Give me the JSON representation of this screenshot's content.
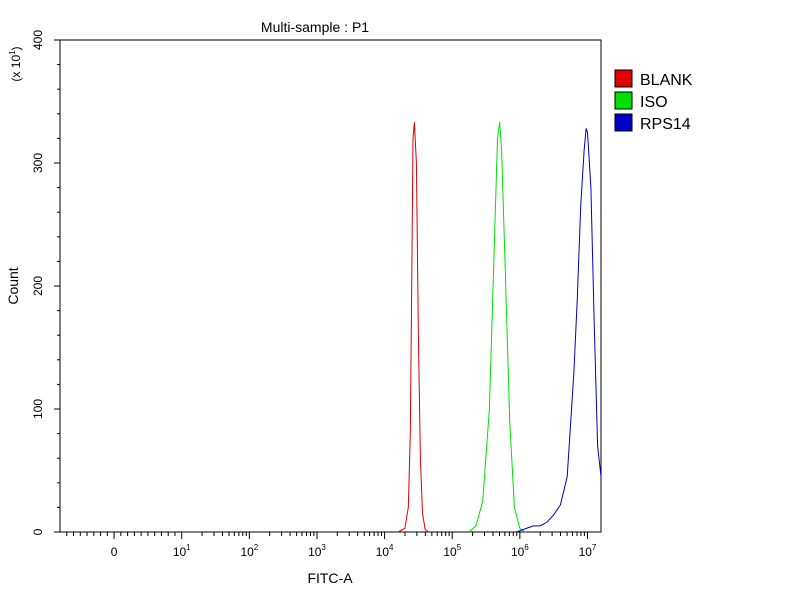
{
  "chart_data": {
    "type": "line",
    "title": "Multi-sample : P1",
    "xlabel": "FITC-A",
    "ylabel": "Count",
    "y_multiplier": {
      "base": "(x 10",
      "exp": "1",
      "close": ")"
    },
    "xscale": "log",
    "xlim": [
      -0.8,
      7.2
    ],
    "ylim": [
      0,
      400
    ],
    "y_ticks": [
      {
        "value": 0,
        "label": "0"
      },
      {
        "value": 100,
        "label": "100"
      },
      {
        "value": 200,
        "label": "200"
      },
      {
        "value": 300,
        "label": "300"
      },
      {
        "value": 400,
        "label": "400"
      }
    ],
    "x_ticks": [
      {
        "value": 0,
        "base": "0",
        "exp": ""
      },
      {
        "value": 1,
        "base": "10",
        "exp": "1"
      },
      {
        "value": 2,
        "base": "10",
        "exp": "2"
      },
      {
        "value": 3,
        "base": "10",
        "exp": "3"
      },
      {
        "value": 4,
        "base": "10",
        "exp": "4"
      },
      {
        "value": 5,
        "base": "10",
        "exp": "5"
      },
      {
        "value": 6,
        "base": "10",
        "exp": "6"
      },
      {
        "value": 7,
        "base": "10",
        "exp": "7"
      }
    ],
    "legend_position": "right",
    "series": [
      {
        "name": "BLANK",
        "color": "#e00000",
        "points": [
          [
            4.2,
            0
          ],
          [
            4.3,
            3
          ],
          [
            4.35,
            20
          ],
          [
            4.38,
            80
          ],
          [
            4.4,
            200
          ],
          [
            4.42,
            320
          ],
          [
            4.44,
            333
          ],
          [
            4.47,
            300
          ],
          [
            4.5,
            160
          ],
          [
            4.53,
            60
          ],
          [
            4.56,
            15
          ],
          [
            4.6,
            2
          ],
          [
            4.65,
            0
          ]
        ]
      },
      {
        "name": "ISO",
        "color": "#00e000",
        "points": [
          [
            5.25,
            0
          ],
          [
            5.35,
            5
          ],
          [
            5.45,
            25
          ],
          [
            5.55,
            100
          ],
          [
            5.62,
            230
          ],
          [
            5.67,
            320
          ],
          [
            5.7,
            333
          ],
          [
            5.73,
            310
          ],
          [
            5.78,
            220
          ],
          [
            5.85,
            90
          ],
          [
            5.92,
            20
          ],
          [
            6.0,
            3
          ],
          [
            6.08,
            0
          ]
        ]
      },
      {
        "name": "RPS14",
        "color": "#0000c8",
        "points": [
          [
            5.95,
            0
          ],
          [
            6.05,
            2
          ],
          [
            6.2,
            5
          ],
          [
            6.3,
            5
          ],
          [
            6.4,
            8
          ],
          [
            6.5,
            14
          ],
          [
            6.6,
            22
          ],
          [
            6.7,
            45
          ],
          [
            6.8,
            130
          ],
          [
            6.85,
            190
          ],
          [
            6.9,
            265
          ],
          [
            6.95,
            310
          ],
          [
            6.98,
            328
          ],
          [
            7.0,
            325
          ],
          [
            7.05,
            280
          ],
          [
            7.1,
            170
          ],
          [
            7.15,
            70
          ],
          [
            7.2,
            45
          ]
        ]
      }
    ]
  }
}
